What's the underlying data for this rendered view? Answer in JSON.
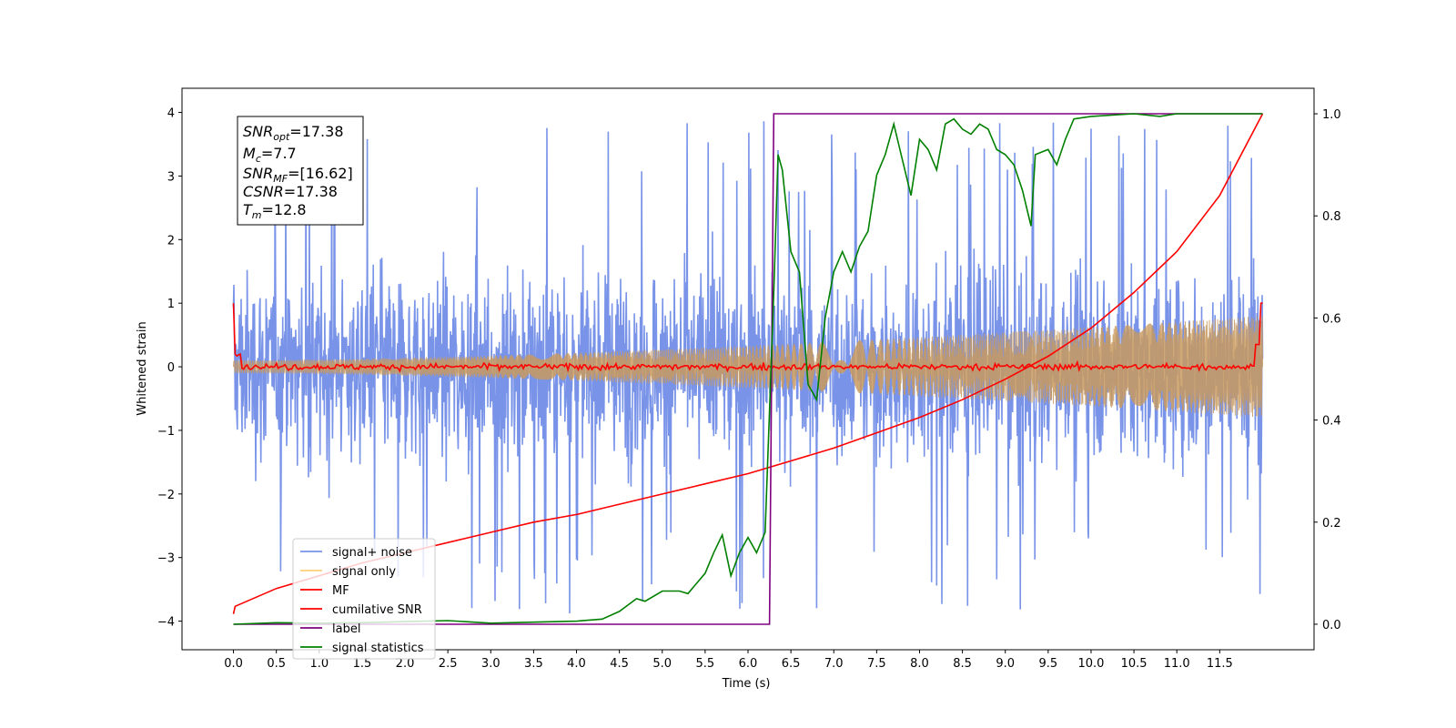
{
  "chart_data": {
    "type": "line",
    "xlabel": "Time (s)",
    "ylabel": "Whitened strain",
    "ylabel_right": "",
    "xlim": [
      -0.6,
      12.6
    ],
    "ylim_left": [
      -4.45,
      4.38
    ],
    "ylim_right": [
      -0.05,
      1.05
    ],
    "x_ticks": [
      "0.0",
      "0.5",
      "1.0",
      "1.5",
      "2.0",
      "2.5",
      "3.0",
      "3.5",
      "4.0",
      "4.5",
      "5.0",
      "5.5",
      "6.0",
      "6.5",
      "7.0",
      "7.5",
      "8.0",
      "8.5",
      "9.0",
      "9.5",
      "10.0",
      "10.5",
      "11.0",
      "11.5"
    ],
    "y_ticks_left": [
      "−4",
      "−3",
      "−2",
      "−1",
      "0",
      "1",
      "2",
      "3",
      "4"
    ],
    "y_ticks_right": [
      "0.0",
      "0.2",
      "0.4",
      "0.6",
      "0.8",
      "1.0"
    ],
    "grid": false,
    "legend_position": "lower-left",
    "info_box": {
      "snr_opt": {
        "base": "SNR",
        "sub": "opt",
        "value": "=17.38"
      },
      "mc": {
        "base": "M",
        "sub": "c",
        "value": "=7.7"
      },
      "snr_mf": {
        "base": "SNR",
        "sub": "MF",
        "value": "=[16.62]"
      },
      "csnr": {
        "base": "CSNR",
        "sub": "",
        "value": "=17.38"
      },
      "tm": {
        "base": "T",
        "sub": "m",
        "value": "=12.8"
      }
    },
    "series": [
      {
        "name": "signal+ noise",
        "color": "#7893e8",
        "axis": "left",
        "description": "noisy whitened strain oscillating roughly between -2.5 and 2.5 with spikes up to about 4",
        "envelope_typical": 2.4,
        "spike_max": 3.9
      },
      {
        "name": "signal only",
        "color": "#fdd07b",
        "axis": "left",
        "description": "chirp signal with amplitude growing from about 0.1 to 0.8",
        "amplitude_start": 0.1,
        "amplitude_end": 0.8
      },
      {
        "name": "MF",
        "color": "#ff0000",
        "axis": "left",
        "description": "matched filter output near 0, spikes to 1 at the edges",
        "x": [
          0.0,
          0.02,
          0.1,
          0.5,
          1.0,
          6.0,
          11.9,
          11.98,
          12.0
        ],
        "y": [
          1.0,
          0.2,
          0.0,
          0.0,
          0.0,
          0.0,
          0.0,
          0.4,
          1.0
        ]
      },
      {
        "name": "cumilative SNR",
        "color": "#ff0000",
        "axis": "right",
        "x": [
          0.0,
          0.02,
          0.5,
          1.0,
          1.5,
          2.0,
          2.5,
          3.0,
          3.5,
          4.0,
          4.5,
          5.0,
          5.5,
          6.0,
          6.5,
          7.0,
          7.5,
          8.0,
          8.5,
          9.0,
          9.5,
          10.0,
          10.5,
          11.0,
          11.5,
          12.0
        ],
        "y": [
          0.02,
          0.035,
          0.07,
          0.095,
          0.12,
          0.14,
          0.16,
          0.18,
          0.2,
          0.215,
          0.235,
          0.255,
          0.275,
          0.295,
          0.32,
          0.345,
          0.375,
          0.405,
          0.44,
          0.48,
          0.525,
          0.58,
          0.65,
          0.73,
          0.84,
          1.0
        ]
      },
      {
        "name": "label",
        "color": "#800080",
        "axis": "right",
        "x": [
          0.0,
          6.25,
          6.3,
          12.0
        ],
        "y": [
          0.0,
          0.0,
          1.0,
          1.0
        ]
      },
      {
        "name": "signal statistics",
        "color": "#008000",
        "axis": "right",
        "x": [
          0.0,
          0.5,
          1.0,
          1.5,
          2.0,
          2.5,
          3.0,
          3.5,
          4.0,
          4.3,
          4.5,
          4.7,
          4.8,
          5.0,
          5.2,
          5.3,
          5.5,
          5.6,
          5.7,
          5.8,
          5.9,
          6.0,
          6.1,
          6.2,
          6.3,
          6.35,
          6.4,
          6.5,
          6.6,
          6.7,
          6.8,
          6.9,
          7.0,
          7.1,
          7.2,
          7.3,
          7.4,
          7.5,
          7.6,
          7.7,
          7.8,
          7.9,
          8.0,
          8.1,
          8.2,
          8.3,
          8.4,
          8.5,
          8.6,
          8.7,
          8.8,
          8.9,
          9.0,
          9.1,
          9.2,
          9.3,
          9.35,
          9.5,
          9.6,
          9.7,
          9.8,
          10.0,
          10.5,
          10.8,
          11.0,
          11.5,
          12.0
        ],
        "y": [
          0.0,
          0.003,
          0.002,
          0.003,
          0.005,
          0.007,
          0.002,
          0.004,
          0.006,
          0.01,
          0.025,
          0.05,
          0.045,
          0.065,
          0.065,
          0.06,
          0.1,
          0.14,
          0.175,
          0.095,
          0.14,
          0.17,
          0.14,
          0.18,
          0.65,
          0.92,
          0.89,
          0.73,
          0.69,
          0.47,
          0.44,
          0.6,
          0.69,
          0.73,
          0.69,
          0.74,
          0.77,
          0.88,
          0.92,
          0.98,
          0.91,
          0.84,
          0.95,
          0.93,
          0.89,
          0.98,
          0.99,
          0.97,
          0.96,
          0.98,
          0.97,
          0.93,
          0.92,
          0.9,
          0.85,
          0.78,
          0.92,
          0.93,
          0.9,
          0.95,
          0.99,
          0.995,
          1.0,
          0.995,
          1.0,
          1.0,
          1.0
        ]
      }
    ]
  }
}
